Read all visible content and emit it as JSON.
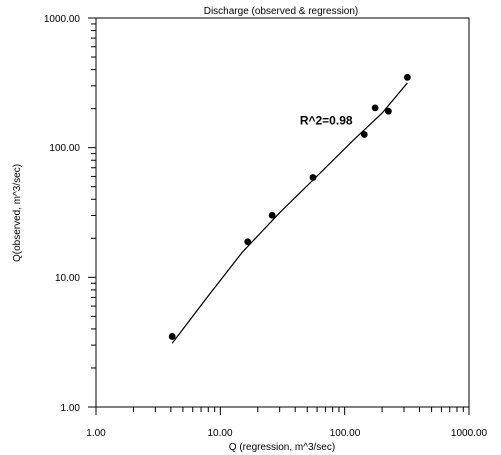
{
  "chart_data": {
    "type": "scatter",
    "title": "Discharge (observed & regression)",
    "xlabel": "Q (regression, m^3/sec)",
    "ylabel": "Q(observed, m^3/sec)",
    "x_scale": "log",
    "y_scale": "log",
    "xlim": [
      1,
      1000
    ],
    "ylim": [
      1,
      1000
    ],
    "x_tick_labels": [
      "1.00",
      "10.00",
      "100.00",
      "1000.00"
    ],
    "y_tick_labels": [
      "1.00",
      "10.00",
      "100.00",
      "1000.00"
    ],
    "grid": false,
    "points": [
      {
        "x": 4.1,
        "y": 3.5
      },
      {
        "x": 16.6,
        "y": 18.8
      },
      {
        "x": 26.1,
        "y": 30.1
      },
      {
        "x": 55.6,
        "y": 58.9
      },
      {
        "x": 143.8,
        "y": 126.3
      },
      {
        "x": 175.8,
        "y": 202.8
      },
      {
        "x": 224.6,
        "y": 191.1
      },
      {
        "x": 319.3,
        "y": 348.7
      }
    ],
    "regression_line": [
      {
        "x": 4.1,
        "y": 3.1
      },
      {
        "x": 8.0,
        "y": 7.2
      },
      {
        "x": 15.0,
        "y": 15.6
      },
      {
        "x": 30.0,
        "y": 31.5
      },
      {
        "x": 60.0,
        "y": 60.4
      },
      {
        "x": 120.0,
        "y": 116.4
      },
      {
        "x": 200.0,
        "y": 184.8
      },
      {
        "x": 319.3,
        "y": 315.7
      }
    ],
    "annotations": [
      {
        "text": "R^2=0.98",
        "x": 43.6,
        "y": 151.1
      }
    ]
  },
  "colors": {
    "background": "#ffffff",
    "axes": "#000000",
    "points": "#000000",
    "line": "#000000",
    "text": "#000000"
  }
}
